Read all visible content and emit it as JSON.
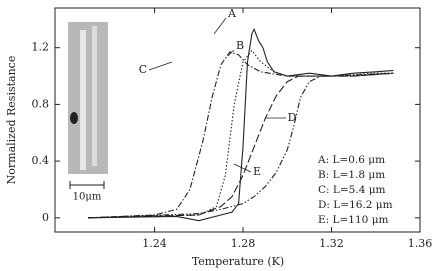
{
  "chart_data": {
    "type": "line",
    "x_label": "Temperature (K)",
    "y_label": "Normalized Resistance",
    "xlim": [
      1.195,
      1.36
    ],
    "ylim": [
      -0.1,
      1.48
    ],
    "xticks": [
      1.24,
      1.28,
      1.32,
      1.36
    ],
    "yticks": [
      0,
      0.4,
      0.8,
      1.2
    ],
    "series": [
      {
        "name": "A: L=0.6 μm",
        "color": "#222",
        "dash": "",
        "x": [
          1.21,
          1.25,
          1.26,
          1.27,
          1.275,
          1.278,
          1.28,
          1.282,
          1.284,
          1.285,
          1.287,
          1.289,
          1.291,
          1.294,
          1.3,
          1.31,
          1.32,
          1.33,
          1.34,
          1.348
        ],
        "values": [
          0,
          0.01,
          -0.02,
          0.02,
          0.04,
          0.1,
          0.5,
          1.1,
          1.3,
          1.33,
          1.25,
          1.2,
          1.1,
          1.03,
          1.0,
          1.02,
          1.0,
          1.02,
          1.03,
          1.04
        ]
      },
      {
        "name": "B: L=1.8 μm",
        "color": "#222",
        "dash": "1.5,2",
        "x": [
          1.21,
          1.26,
          1.268,
          1.272,
          1.276,
          1.28,
          1.284,
          1.288,
          1.294,
          1.3,
          1.32,
          1.34,
          1.348
        ],
        "values": [
          0,
          0.02,
          0.08,
          0.3,
          0.8,
          1.1,
          1.18,
          1.1,
          1.03,
          1.0,
          1.0,
          1.02,
          1.02
        ]
      },
      {
        "name": "C: L=5.4 μm",
        "color": "#222",
        "dash": "6,2,1.5,2",
        "x": [
          1.21,
          1.24,
          1.25,
          1.256,
          1.262,
          1.266,
          1.27,
          1.274,
          1.278,
          1.282,
          1.288,
          1.3,
          1.32,
          1.348
        ],
        "values": [
          0,
          0.02,
          0.06,
          0.2,
          0.55,
          0.85,
          1.08,
          1.17,
          1.15,
          1.08,
          1.03,
          1.0,
          1.0,
          1.02
        ]
      },
      {
        "name": "D: L=16.2 μm",
        "color": "#222",
        "dash": "8,3",
        "x": [
          1.21,
          1.26,
          1.27,
          1.275,
          1.28,
          1.285,
          1.29,
          1.295,
          1.3,
          1.305,
          1.31,
          1.33,
          1.348
        ],
        "values": [
          0,
          0.02,
          0.08,
          0.15,
          0.3,
          0.5,
          0.7,
          0.86,
          0.96,
          1.0,
          1.0,
          1.0,
          1.02
        ]
      },
      {
        "name": "E: L=110 μm",
        "color": "#222",
        "dash": "6,2,1.5,2,1.5,2",
        "x": [
          1.21,
          1.26,
          1.27,
          1.28,
          1.285,
          1.29,
          1.295,
          1.3,
          1.303,
          1.306,
          1.31,
          1.315,
          1.33,
          1.348
        ],
        "values": [
          0,
          0.03,
          0.06,
          0.1,
          0.15,
          0.22,
          0.32,
          0.48,
          0.65,
          0.85,
          0.96,
          1.0,
          1.0,
          1.02
        ]
      }
    ],
    "annotations": [
      "A",
      "B",
      "C",
      "D",
      "E"
    ],
    "inset_scale_label": "10μm"
  }
}
